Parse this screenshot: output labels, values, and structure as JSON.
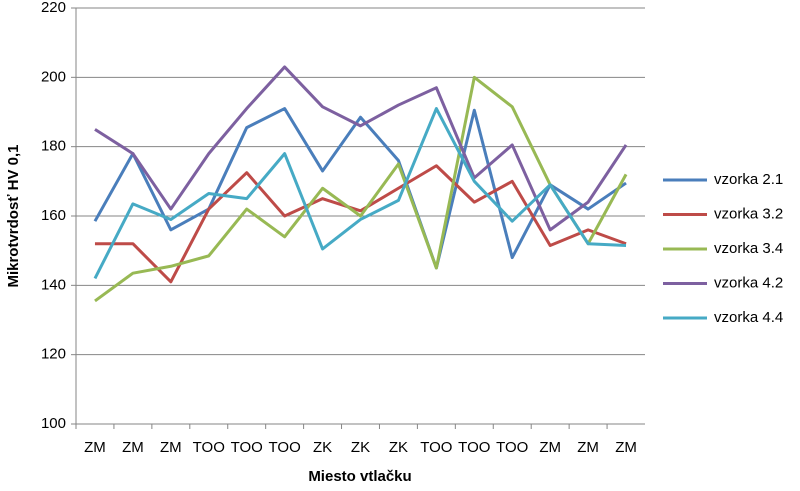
{
  "chart_data": {
    "type": "line",
    "x_label": "Miesto vtlačku",
    "y_label": "Mikrotvrdosť HV 0,1",
    "categories": [
      "ZM",
      "ZM",
      "ZM",
      "TOO",
      "TOO",
      "TOO",
      "ZK",
      "ZK",
      "ZK",
      "TOO",
      "TOO",
      "TOO",
      "ZM",
      "ZM",
      "ZM"
    ],
    "series": [
      {
        "name": "vzorka 2.1",
        "color": "#4a7ebb",
        "values": [
          158.5,
          178,
          156,
          162,
          185.5,
          191,
          173,
          188.5,
          176,
          145,
          190.5,
          148,
          169,
          162,
          169.5
        ]
      },
      {
        "name": "vzorka 3.2",
        "color": "#be4b48",
        "values": [
          152,
          152,
          141,
          162,
          172.5,
          160,
          165,
          161.5,
          168,
          174.5,
          164,
          170,
          151.5,
          156,
          152
        ]
      },
      {
        "name": "vzorka 3.4",
        "color": "#98b954",
        "values": [
          135.5,
          143.5,
          145.5,
          148.5,
          162,
          154,
          168,
          160,
          175,
          145,
          200,
          191.5,
          169,
          152,
          172
        ]
      },
      {
        "name": "vzorka 4.2",
        "color": "#7d60a0",
        "values": [
          185,
          178,
          162,
          178,
          191,
          203,
          191.5,
          186,
          192,
          197,
          171,
          180.5,
          156,
          164,
          180.5
        ]
      },
      {
        "name": "vzorka 4.4",
        "color": "#46aac5",
        "values": [
          142,
          163.5,
          159,
          166.5,
          165,
          178,
          150.5,
          159,
          164.5,
          191,
          170,
          158.5,
          169,
          152,
          151.5
        ]
      }
    ],
    "ylim": [
      100,
      220
    ],
    "yticks": [
      100,
      120,
      140,
      160,
      180,
      200,
      220
    ],
    "grid": true,
    "legend": "right"
  }
}
